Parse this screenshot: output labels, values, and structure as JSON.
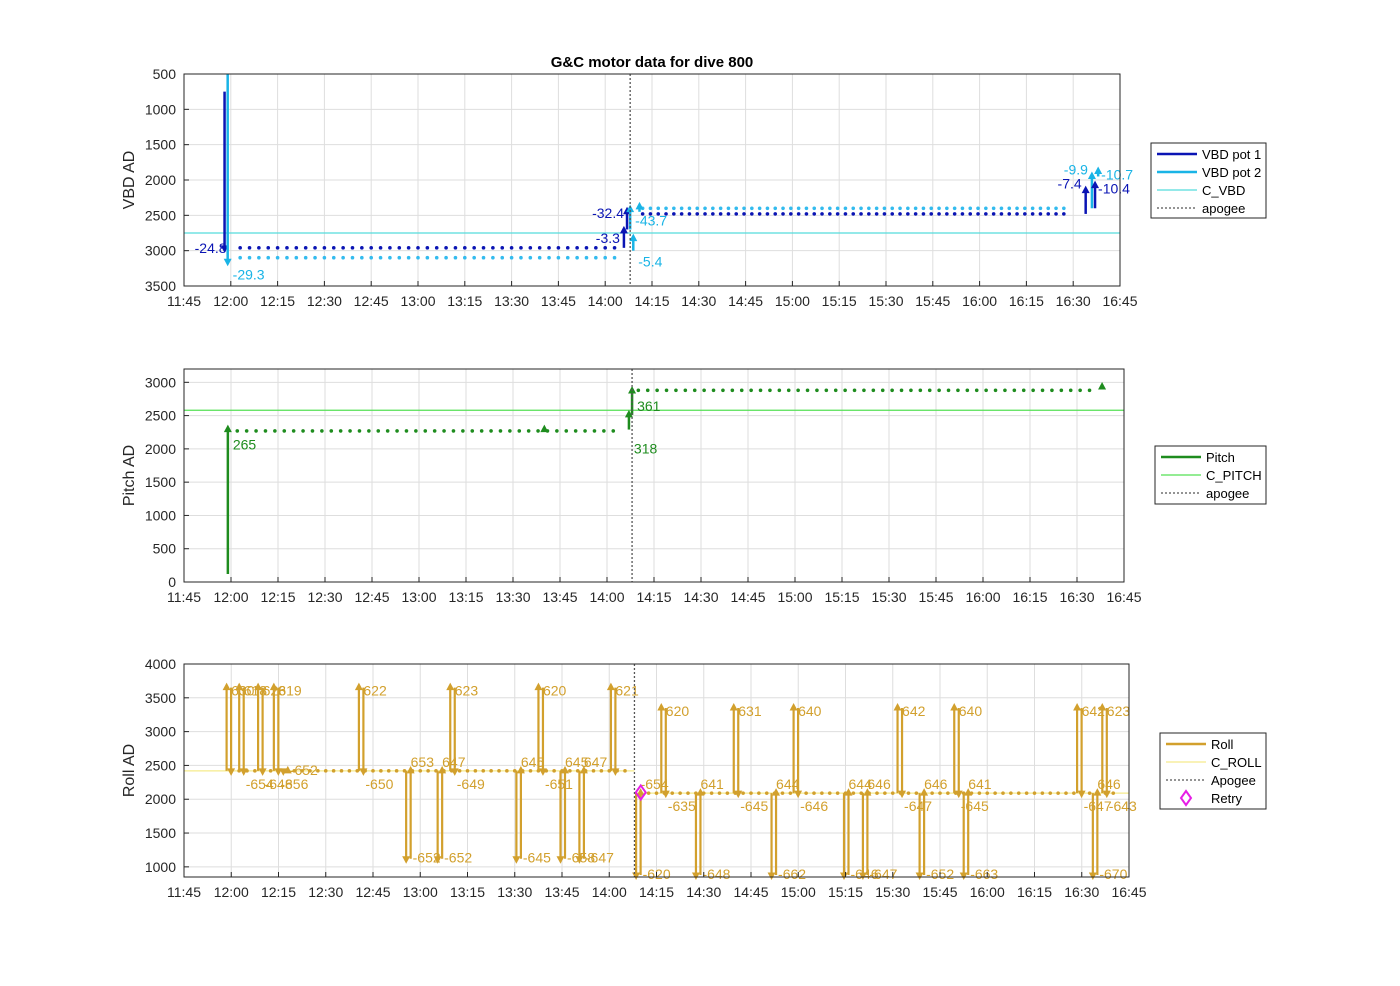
{
  "figure_title": "G&C motor data for dive 800",
  "chart_data": [
    {
      "type": "line",
      "title": "G&C motor data for dive 800",
      "ylabel": "VBD AD",
      "y_reversed": true,
      "ylim": [
        500,
        3500
      ],
      "y_ticks": [
        "500",
        "1000",
        "1500",
        "2000",
        "2500",
        "3000",
        "3500"
      ],
      "y_tick_values": [
        500,
        1000,
        1500,
        2000,
        2500,
        3000,
        3500
      ],
      "xlim": [
        "11:45",
        "16:45"
      ],
      "x_ticks": [
        "11:45",
        "12:00",
        "12:15",
        "12:30",
        "12:45",
        "13:00",
        "13:15",
        "13:30",
        "13:45",
        "14:00",
        "14:15",
        "14:30",
        "14:45",
        "15:00",
        "15:15",
        "15:30",
        "15:45",
        "16:00",
        "16:15",
        "16:30",
        "16:45"
      ],
      "grid": true,
      "legend_position": "outside-right",
      "legend": [
        {
          "name": "VBD pot 1",
          "color": "#0a14b4",
          "style": "thick"
        },
        {
          "name": "VBD pot 2",
          "color": "#19b4e6",
          "style": "thick"
        },
        {
          "name": "C_VBD",
          "color": "#55dcdc",
          "style": "thin"
        },
        {
          "name": "apogee",
          "color": "#555555",
          "style": "dotted"
        }
      ],
      "reference_lines": [
        {
          "value": 2750,
          "color": "#55dcdc"
        }
      ],
      "apogee": "14:08",
      "series": [
        {
          "name": "VBD pot 1",
          "color": "#0a14b4",
          "segments": [
            {
              "x0": "12:03",
              "x1": "14:03",
              "y": 2960,
              "step_min": 3
            },
            {
              "x0": "14:12",
              "x1": "16:29",
              "y": 2480,
              "step_min": 2.5
            }
          ]
        },
        {
          "name": "VBD pot 2",
          "color": "#33bbee",
          "segments": [
            {
              "x0": "12:03",
              "x1": "14:03",
              "y": 3100,
              "step_min": 3
            },
            {
              "x0": "14:12",
              "x1": "16:29",
              "y": 2400,
              "step_min": 2.5
            }
          ]
        }
      ],
      "pump_events": [
        {
          "x": "11:58",
          "from": 750,
          "to": 2960,
          "color": "#0a14b4",
          "head": "down",
          "label": "-24.8"
        },
        {
          "x": "11:59",
          "from": 500,
          "to": 3150,
          "color": "#19b4e6",
          "head": "down",
          "label": "-29.3"
        },
        {
          "x": "14:06",
          "from": 2960,
          "to": 2720,
          "color": "#0a14b4",
          "head": "up",
          "label": "-3.3"
        },
        {
          "x": "14:07",
          "from": 2700,
          "to": 2450,
          "color": "#0a14b4",
          "head": "up",
          "label": "-32.4"
        },
        {
          "x": "14:08",
          "from": 2700,
          "to": 2420,
          "color": "#19b4e6",
          "head": "up",
          "label": "-43.7"
        },
        {
          "x": "14:09",
          "from": 3000,
          "to": 2830,
          "color": "#19b4e6",
          "head": "up",
          "label": "-5.4"
        },
        {
          "x": "14:11",
          "from": 2450,
          "to": 2380,
          "color": "#19b4e6",
          "head": "up",
          "label": ""
        },
        {
          "x": "16:34",
          "from": 2480,
          "to": 2150,
          "color": "#0a14b4",
          "head": "up",
          "label": "-7.4"
        },
        {
          "x": "16:36",
          "from": 2400,
          "to": 1950,
          "color": "#19b4e6",
          "head": "up",
          "label": "-9.9"
        },
        {
          "x": "16:37",
          "from": 2400,
          "to": 2080,
          "color": "#0a14b4",
          "head": "up",
          "label": "-10.4"
        },
        {
          "x": "16:38",
          "from": 1950,
          "to": 1880,
          "color": "#19b4e6",
          "head": "up",
          "label": "-10.7"
        }
      ]
    },
    {
      "type": "line",
      "ylabel": "Pitch AD",
      "ylim": [
        0,
        3200
      ],
      "y_ticks": [
        "0",
        "500",
        "1000",
        "1500",
        "2000",
        "2500",
        "3000"
      ],
      "y_tick_values": [
        0,
        500,
        1000,
        1500,
        2000,
        2500,
        3000
      ],
      "xlim": [
        "11:45",
        "16:45"
      ],
      "x_ticks": [
        "11:45",
        "12:00",
        "12:15",
        "12:30",
        "12:45",
        "13:00",
        "13:15",
        "13:30",
        "13:45",
        "14:00",
        "14:15",
        "14:30",
        "14:45",
        "15:00",
        "15:15",
        "15:30",
        "15:45",
        "16:00",
        "16:15",
        "16:30",
        "16:45"
      ],
      "grid": true,
      "legend_position": "outside-right",
      "legend": [
        {
          "name": "Pitch",
          "color": "#1e8c1e",
          "style": "thick"
        },
        {
          "name": "C_PITCH",
          "color": "#55e055",
          "style": "thin"
        },
        {
          "name": "apogee",
          "color": "#555555",
          "style": "dotted"
        }
      ],
      "reference_lines": [
        {
          "value": 2580,
          "color": "#55e055"
        }
      ],
      "apogee": "14:08",
      "series": [
        {
          "name": "Pitch",
          "color": "#1e8c1e",
          "segments": [
            {
              "x0": "12:02",
              "x1": "14:03",
              "y": 2270,
              "step_min": 3
            },
            {
              "x0": "14:10",
              "x1": "16:35",
              "y": 2880,
              "step_min": 3
            }
          ]
        }
      ],
      "pump_events": [
        {
          "x": "11:59",
          "from": 120,
          "to": 2290,
          "color": "#1e8c1e",
          "head": "up",
          "label": "265"
        },
        {
          "x": "14:07",
          "from": 2290,
          "to": 2510,
          "color": "#1e8c1e",
          "head": "up",
          "label": "318"
        },
        {
          "x": "14:08",
          "from": 2510,
          "to": 2870,
          "color": "#1e8c1e",
          "head": "up",
          "label": "361"
        },
        {
          "x": "13:40",
          "from": 2290,
          "to": 2290,
          "color": "#1e8c1e",
          "head": "up",
          "label": ""
        },
        {
          "x": "16:38",
          "from": 2900,
          "to": 2930,
          "color": "#1e8c1e",
          "head": "up",
          "label": ""
        }
      ]
    },
    {
      "type": "line",
      "ylabel": "Roll AD",
      "ylim": [
        850,
        4000
      ],
      "y_ticks": [
        "1000",
        "1500",
        "2000",
        "2500",
        "3000",
        "3500",
        "4000"
      ],
      "y_tick_values": [
        1000,
        1500,
        2000,
        2500,
        3000,
        3500,
        4000
      ],
      "xlim": [
        "11:45",
        "16:45"
      ],
      "x_ticks": [
        "11:45",
        "12:00",
        "12:15",
        "12:30",
        "12:45",
        "13:00",
        "13:15",
        "13:30",
        "13:45",
        "14:00",
        "14:15",
        "14:30",
        "14:45",
        "15:00",
        "15:15",
        "15:30",
        "15:45",
        "16:00",
        "16:15",
        "16:30",
        "16:45"
      ],
      "grid": true,
      "legend_position": "outside-right",
      "legend": [
        {
          "name": "Roll",
          "color": "#d2a02d",
          "style": "thick"
        },
        {
          "name": "C_ROLL",
          "color": "#f5eb8c",
          "style": "thin"
        },
        {
          "name": "Apogee",
          "color": "#555555",
          "style": "dotted"
        },
        {
          "name": "Retry",
          "color": "#e61ee6",
          "style": "diamond"
        }
      ],
      "reference_lines": [
        {
          "value": 2420,
          "x0": "11:45",
          "x1": "14:08",
          "color": "#f5eb8c"
        },
        {
          "value": 2090,
          "x0": "14:08",
          "x1": "16:45",
          "color": "#f5eb8c"
        }
      ],
      "apogee": "14:08",
      "series": [
        {
          "name": "Roll",
          "color": "#d2a02d",
          "segments": [
            {
              "x0": "12:00",
              "x1": "14:05",
              "y": 2420,
              "step_min": 2.5
            },
            {
              "x0": "14:10",
              "x1": "16:40",
              "y": 2090,
              "step_min": 2.5
            }
          ]
        }
      ],
      "retry": {
        "x": "14:10",
        "y": 2100
      },
      "roll_events": [
        {
          "x": "11:59",
          "peak": 3650,
          "label": "630",
          "ret_label": ""
        },
        {
          "x": "12:03",
          "peak": 3650,
          "label": "618",
          "ret_label": "-654"
        },
        {
          "x": "12:09",
          "peak": 3650,
          "label": "628",
          "ret_label": "-648"
        },
        {
          "x": "12:14",
          "peak": 3650,
          "label": "619",
          "ret_label": "-656"
        },
        {
          "x": "12:17",
          "peak": 2420,
          "label": "",
          "ret_label": "-652"
        },
        {
          "x": "12:41",
          "peak": 3650,
          "label": "622",
          "ret_label": "-650"
        },
        {
          "x": "12:56",
          "peak": 1120,
          "label": "653",
          "ret_label": "-652"
        },
        {
          "x": "13:06",
          "peak": 1120,
          "label": "647",
          "ret_label": "-652"
        },
        {
          "x": "13:10",
          "peak": 3650,
          "label": "623",
          "ret_label": "-649"
        },
        {
          "x": "13:31",
          "peak": 1120,
          "label": "645",
          "ret_label": "-645"
        },
        {
          "x": "13:38",
          "peak": 3650,
          "label": "620",
          "ret_label": "-651"
        },
        {
          "x": "13:45",
          "peak": 1120,
          "label": "645",
          "ret_label": "-658"
        },
        {
          "x": "13:51",
          "peak": 1120,
          "label": "647",
          "ret_label": "-647"
        },
        {
          "x": "14:01",
          "peak": 3650,
          "label": "621",
          "ret_label": ""
        },
        {
          "x": "14:09",
          "peak": 880,
          "label": "-654",
          "ret_label": "-620"
        },
        {
          "x": "14:17",
          "peak": 3350,
          "label": "620",
          "ret_label": "-635"
        },
        {
          "x": "14:28",
          "peak": 880,
          "label": "641",
          "ret_label": "-648"
        },
        {
          "x": "14:40",
          "peak": 3350,
          "label": "631",
          "ret_label": "-645"
        },
        {
          "x": "14:52",
          "peak": 880,
          "label": "644",
          "ret_label": "-662"
        },
        {
          "x": "14:59",
          "peak": 3350,
          "label": "640",
          "ret_label": "-646"
        },
        {
          "x": "15:15",
          "peak": 880,
          "label": "644",
          "ret_label": "-646"
        },
        {
          "x": "15:21",
          "peak": 880,
          "label": "646",
          "ret_label": "-647"
        },
        {
          "x": "15:32",
          "peak": 3350,
          "label": "642",
          "ret_label": "-647"
        },
        {
          "x": "15:39",
          "peak": 880,
          "label": "646",
          "ret_label": "-652"
        },
        {
          "x": "15:50",
          "peak": 3350,
          "label": "640",
          "ret_label": "-645"
        },
        {
          "x": "15:53",
          "peak": 880,
          "label": "641",
          "ret_label": "-663"
        },
        {
          "x": "16:29",
          "peak": 3350,
          "label": "642",
          "ret_label": "-647"
        },
        {
          "x": "16:34",
          "peak": 880,
          "label": "646",
          "ret_label": "-670"
        },
        {
          "x": "16:37",
          "peak": 3350,
          "label": "623",
          "ret_label": "-643"
        }
      ]
    }
  ]
}
